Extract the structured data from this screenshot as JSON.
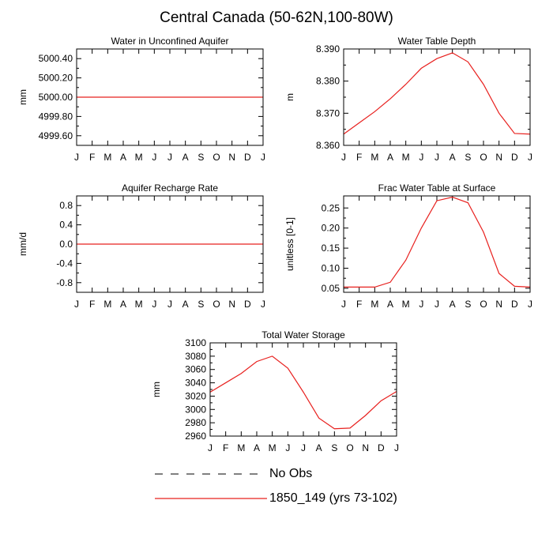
{
  "page": {
    "title": "Central Canada (50-62N,100-80W)"
  },
  "months": [
    "J",
    "F",
    "M",
    "A",
    "M",
    "J",
    "J",
    "A",
    "S",
    "O",
    "N",
    "D",
    "J"
  ],
  "legend": {
    "obs_label": "No Obs",
    "model_label": "1850_149 (yrs 73-102)",
    "obs_color": "#000000",
    "model_color": "#e8201e"
  },
  "chart_data": [
    {
      "id": "aquifer",
      "type": "line",
      "title": "Water in Unconfined Aquifer",
      "ylabel": "mm",
      "ylim": [
        4999.5,
        5000.5
      ],
      "yticks": [
        4999.6,
        4999.8,
        5000.0,
        5000.2,
        5000.4
      ],
      "ytick_labels": [
        "4999.60",
        "4999.80",
        "5000.00",
        "5000.20",
        "5000.40"
      ],
      "series": [
        {
          "name": "1850_149 (yrs 73-102)",
          "values": [
            5000,
            5000,
            5000,
            5000,
            5000,
            5000,
            5000,
            5000,
            5000,
            5000,
            5000,
            5000,
            5000
          ]
        }
      ]
    },
    {
      "id": "wtd",
      "type": "line",
      "title": "Water Table Depth",
      "ylabel": "m",
      "ylim": [
        8.36,
        8.39
      ],
      "yticks": [
        8.36,
        8.37,
        8.38,
        8.39
      ],
      "ytick_labels": [
        "8.360",
        "8.370",
        "8.380",
        "8.390"
      ],
      "series": [
        {
          "name": "1850_149 (yrs 73-102)",
          "values": [
            8.3635,
            8.367,
            8.3705,
            8.3745,
            8.379,
            8.384,
            8.387,
            8.3888,
            8.386,
            8.379,
            8.37,
            8.3637,
            8.3635
          ]
        }
      ]
    },
    {
      "id": "recharge",
      "type": "line",
      "title": "Aquifer Recharge Rate",
      "ylabel": "mm/d",
      "ylim": [
        -1.0,
        1.0
      ],
      "yticks": [
        -0.8,
        -0.4,
        0.0,
        0.4,
        0.8
      ],
      "ytick_labels": [
        "-0.8",
        "-0.4",
        "0.0",
        "0.4",
        "0.8"
      ],
      "series": [
        {
          "name": "1850_149 (yrs 73-102)",
          "values": [
            0,
            0,
            0,
            0,
            0,
            0,
            0,
            0,
            0,
            0,
            0,
            0,
            0
          ]
        }
      ]
    },
    {
      "id": "frac",
      "type": "line",
      "title": "Frac Water Table at Surface",
      "ylabel": "unitless [0-1]",
      "ylim": [
        0.04,
        0.28
      ],
      "yticks": [
        0.05,
        0.1,
        0.15,
        0.2,
        0.25
      ],
      "ytick_labels": [
        "0.05",
        "0.10",
        "0.15",
        "0.20",
        "0.25"
      ],
      "series": [
        {
          "name": "1850_149 (yrs 73-102)",
          "values": [
            0.053,
            0.053,
            0.053,
            0.065,
            0.12,
            0.2,
            0.268,
            0.277,
            0.263,
            0.19,
            0.087,
            0.055,
            0.053
          ]
        }
      ]
    },
    {
      "id": "tws",
      "type": "line",
      "title": "Total Water Storage",
      "ylabel": "mm",
      "ylim": [
        2960,
        3100
      ],
      "yticks": [
        2960,
        2980,
        3000,
        3020,
        3040,
        3060,
        3080,
        3100
      ],
      "ytick_labels": [
        "2960",
        "2980",
        "3000",
        "3020",
        "3040",
        "3060",
        "3080",
        "3100"
      ],
      "series": [
        {
          "name": "1850_149 (yrs 73-102)",
          "values": [
            3026,
            3040,
            3054,
            3072,
            3080,
            3062,
            3026,
            2987,
            2971,
            2972,
            2991,
            3013,
            3027
          ]
        }
      ]
    }
  ]
}
